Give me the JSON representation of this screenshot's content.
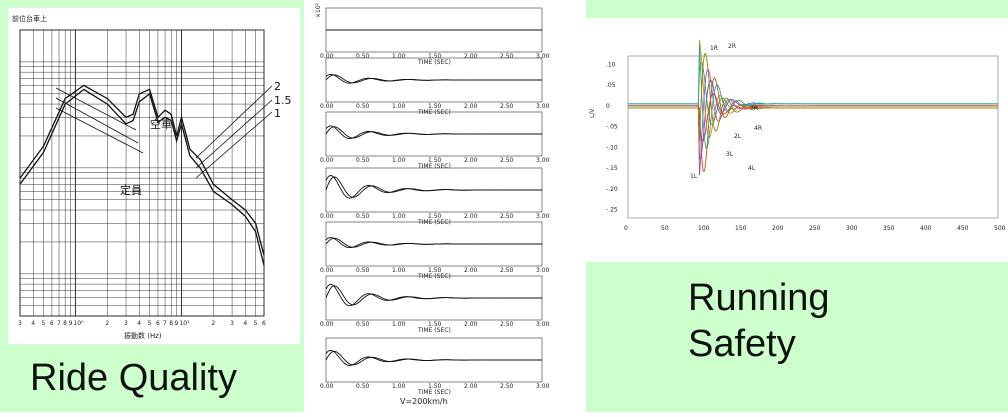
{
  "captions": {
    "left": "Ride Quality",
    "right_line1": "Running",
    "right_line2": "Safety"
  },
  "colors": {
    "panel_bg": "#ccffcc",
    "curve": "#111111"
  },
  "chart_data": [
    {
      "type": "line",
      "title": "前位台車上",
      "xlabel": "振動数 (Hz)",
      "ylabel": "",
      "x_scale": "log",
      "y_scale": "log",
      "x_tick_labels": [
        "3",
        "4",
        "5",
        "6",
        "7",
        "8",
        "9",
        "10⁰",
        "2",
        "3",
        "4",
        "5",
        "6",
        "7",
        "8",
        "9",
        "10¹",
        "2",
        "3",
        "4",
        "5",
        "6"
      ],
      "series": [
        {
          "name": "空車",
          "x": [
            0.3,
            0.5,
            0.8,
            1.2,
            2,
            3,
            3.5,
            4,
            5,
            6,
            7,
            8,
            9,
            10,
            12,
            15,
            20,
            30,
            40,
            50,
            60
          ],
          "values": [
            0.08,
            0.16,
            0.45,
            0.6,
            0.45,
            0.3,
            0.32,
            0.5,
            0.55,
            0.3,
            0.35,
            0.32,
            0.2,
            0.3,
            0.15,
            0.12,
            0.07,
            0.05,
            0.04,
            0.03,
            0.015
          ]
        },
        {
          "name": "定員",
          "x": [
            0.3,
            0.5,
            0.8,
            1.2,
            2,
            3,
            3.5,
            4,
            5,
            6,
            7,
            8,
            9,
            10,
            12,
            15,
            20,
            30,
            40,
            50,
            60
          ],
          "values": [
            0.07,
            0.14,
            0.4,
            0.55,
            0.4,
            0.26,
            0.28,
            0.42,
            0.5,
            0.27,
            0.3,
            0.28,
            0.18,
            0.26,
            0.13,
            0.1,
            0.06,
            0.045,
            0.035,
            0.025,
            0.012
          ]
        }
      ],
      "annotations": [
        "空車",
        "定員",
        "2",
        "1.5",
        "1"
      ]
    },
    {
      "type": "line",
      "title": "",
      "xlabel": "TIME (SEC)",
      "ylabel": "×10²",
      "x_tick_labels": [
        "0.00",
        "0.50",
        "1.00",
        "1.50",
        "2.00",
        "2.50",
        "3.00"
      ],
      "xlim": [
        0,
        3
      ],
      "subplots": 7,
      "footer": "V=200km/h"
    },
    {
      "type": "line",
      "title": "",
      "xlabel": "",
      "ylabel": "L/V",
      "x_tick_labels": [
        "0",
        "50",
        "100",
        "150",
        "200",
        "250",
        "300",
        "350",
        "400",
        "450",
        "500"
      ],
      "y_tick_labels": [
        ".10",
        ".05",
        "0",
        "-.05",
        "-.10",
        "-.15",
        "-.20",
        "-.25"
      ],
      "ylim": [
        -0.27,
        0.12
      ],
      "annotations": [
        "1R",
        "2R",
        "3R",
        "4R",
        "2L",
        "3L",
        "4L",
        "1L"
      ]
    }
  ]
}
